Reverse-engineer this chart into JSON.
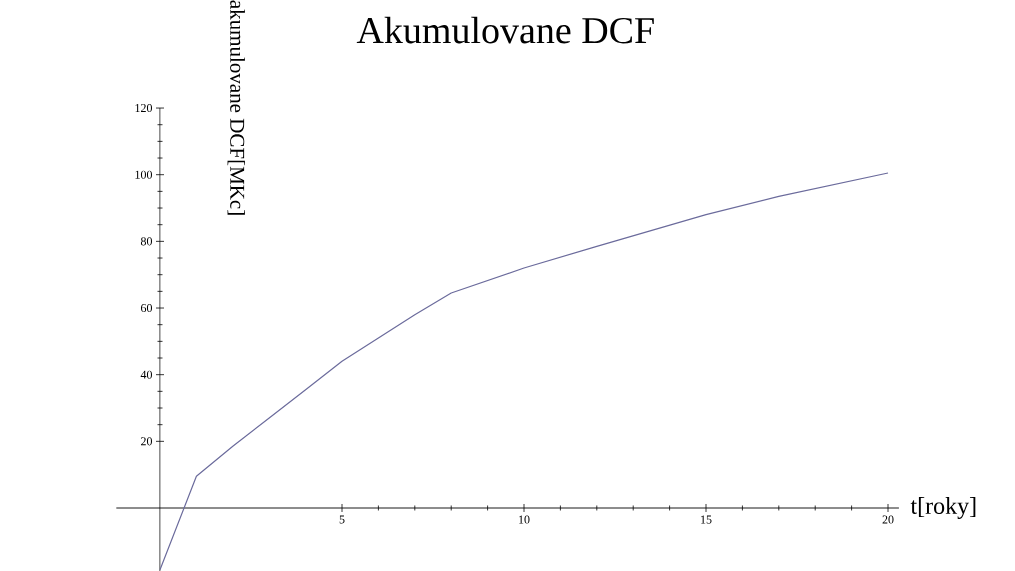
{
  "chart_data": {
    "type": "line",
    "title": "Akumulovane DCF",
    "xlabel": "t[roky]",
    "ylabel": "akumulovane DCF[MKc]",
    "x": [
      0,
      1,
      2,
      3,
      4,
      5,
      6,
      7,
      8,
      10,
      12,
      15,
      17,
      20
    ],
    "values": [
      -18.5,
      9.5,
      18.5,
      27,
      35.5,
      44,
      51,
      58,
      64.5,
      72,
      78.5,
      88,
      93.5,
      100.5
    ],
    "color": "#6b6b9c",
    "xlim": [
      -1.2,
      20.3
    ],
    "ylim": [
      -19,
      120
    ],
    "xticks": [
      5,
      10,
      15,
      20
    ],
    "yticks": [
      20,
      40,
      60,
      80,
      100,
      120
    ]
  }
}
